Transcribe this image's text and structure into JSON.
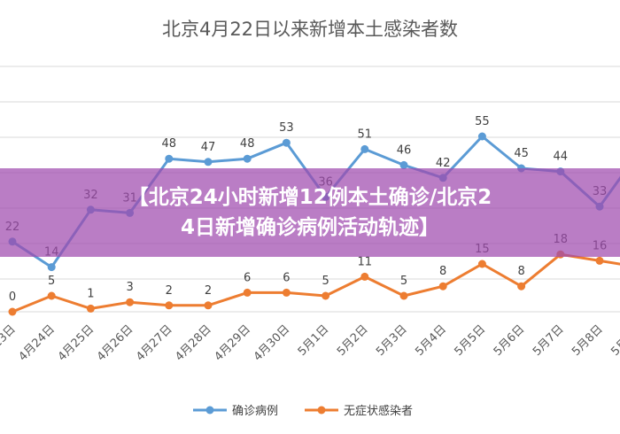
{
  "chart_data": {
    "type": "line",
    "title": "北京4月22日以来新增本土感染者数",
    "categories": [
      "4月23日",
      "4月24日",
      "4月25日",
      "4月26日",
      "4月27日",
      "4月28日",
      "4月29日",
      "4月30日",
      "5月1日",
      "5月2日",
      "5月3日",
      "5月4日",
      "5月5日",
      "5月6日",
      "5月7日",
      "5月8日",
      "5月9日"
    ],
    "series": [
      {
        "name": "确诊病例",
        "color": "#5b9bd5",
        "values": [
          22,
          14,
          32,
          31,
          48,
          47,
          48,
          53,
          36,
          51,
          46,
          42,
          55,
          45,
          44,
          33,
          50
        ]
      },
      {
        "name": "无症状感染者",
        "color": "#ed7d31",
        "values": [
          0,
          5,
          1,
          3,
          2,
          2,
          6,
          6,
          5,
          11,
          5,
          8,
          15,
          8,
          18,
          16,
          14
        ]
      }
    ],
    "ylim": [
      -3,
      70
    ],
    "grid": true,
    "legend": "bottom"
  },
  "overlay": {
    "line1": "【北京24小时新增12例本土确诊/北京2",
    "line2": "4日新增确诊病例活动轨迹】"
  }
}
